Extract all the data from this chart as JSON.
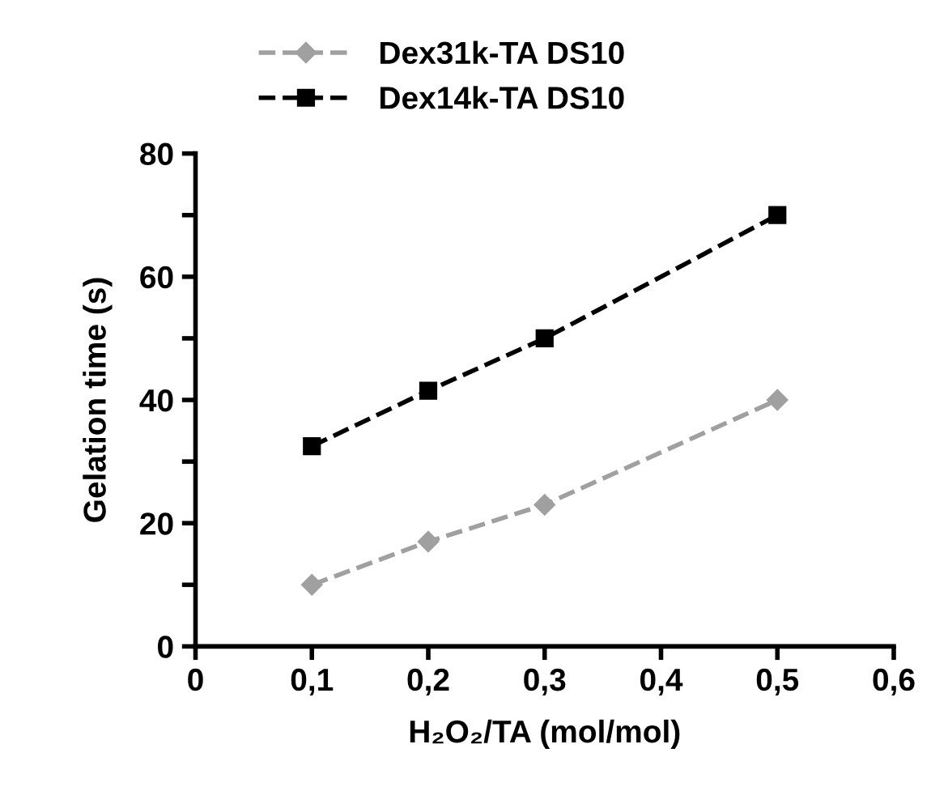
{
  "chart_data": {
    "type": "line",
    "xlabel": "H₂O₂/TA (mol/mol)",
    "ylabel": "Gelation time (s)",
    "x": [
      0.1,
      0.2,
      0.3,
      0.5
    ],
    "series": [
      {
        "name": "Dex31k-TA DS10",
        "color": "#a0a0a0",
        "marker": "diamond",
        "values": [
          10,
          17,
          23,
          40
        ]
      },
      {
        "name": "Dex14k-TA DS10",
        "color": "#000000",
        "marker": "square",
        "values": [
          32.5,
          41.5,
          50,
          70
        ]
      }
    ],
    "line_style": "dashed",
    "legend": "top",
    "grid": false,
    "xlim": [
      0,
      0.6
    ],
    "xticks": [
      0,
      {
        "value": 0.1,
        "label": "0,1"
      },
      {
        "value": 0.2,
        "label": "0,2"
      },
      {
        "value": 0.3,
        "label": "0,3"
      },
      {
        "value": 0.4,
        "label": "0,4"
      },
      {
        "value": 0.5,
        "label": "0,5"
      },
      {
        "value": 0.6,
        "label": "0,6"
      }
    ],
    "ylim": [
      0,
      80
    ],
    "yticks": [
      0,
      {
        "value": 10,
        "label": null
      },
      20,
      {
        "value": 30,
        "label": null
      },
      40,
      {
        "value": 50,
        "label": null
      },
      60,
      {
        "value": 70,
        "label": null
      },
      80
    ]
  }
}
